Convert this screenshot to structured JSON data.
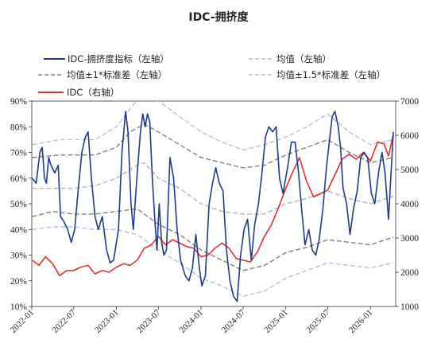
{
  "chart_data": {
    "type": "line",
    "title": "IDC-拥挤度",
    "x_ticks": [
      "2022-01",
      "2022-07",
      "2023-01",
      "2023-07",
      "2024-01",
      "2024-07",
      "2025-01",
      "2025-07",
      "2026-01"
    ],
    "y_left": {
      "range": [
        0.1,
        0.9
      ],
      "ticks": [
        "10%",
        "20%",
        "30%",
        "40%",
        "50%",
        "60%",
        "70%",
        "80%",
        "90%"
      ]
    },
    "y_right": {
      "range": [
        1000,
        7000
      ],
      "ticks": [
        "1000",
        "2000",
        "3000",
        "4000",
        "5000",
        "6000",
        "7000"
      ]
    },
    "legend": {
      "crowding": "IDC-拥挤度指标（左轴）",
      "mean": "均值（左轴）",
      "sd1": "均值±1*标准差（左轴）",
      "sd15": "均值±1.5*标准差（左轴）",
      "idc": "IDC（右轴）"
    },
    "colors": {
      "crowding": "#1f3a8a",
      "mean": "#b5b5b5",
      "sd1": "#808080",
      "sd15": "#a8c4e6",
      "idc": "#e03030"
    },
    "series": {
      "crowding": [
        [
          "2022-01-03",
          0.6
        ],
        [
          "2022-01-20",
          0.58
        ],
        [
          "2022-02-05",
          0.7
        ],
        [
          "2022-02-15",
          0.72
        ],
        [
          "2022-02-25",
          0.6
        ],
        [
          "2022-03-05",
          0.58
        ],
        [
          "2022-03-15",
          0.68
        ],
        [
          "2022-03-25",
          0.65
        ],
        [
          "2022-04-10",
          0.62
        ],
        [
          "2022-04-25",
          0.65
        ],
        [
          "2022-05-05",
          0.45
        ],
        [
          "2022-05-20",
          0.43
        ],
        [
          "2022-06-05",
          0.4
        ],
        [
          "2022-06-20",
          0.35
        ],
        [
          "2022-07-05",
          0.4
        ],
        [
          "2022-07-20",
          0.55
        ],
        [
          "2022-08-05",
          0.7
        ],
        [
          "2022-08-20",
          0.76
        ],
        [
          "2022-09-01",
          0.78
        ],
        [
          "2022-09-15",
          0.6
        ],
        [
          "2022-10-01",
          0.45
        ],
        [
          "2022-10-15",
          0.4
        ],
        [
          "2022-11-01",
          0.45
        ],
        [
          "2022-11-20",
          0.32
        ],
        [
          "2022-12-05",
          0.27
        ],
        [
          "2022-12-20",
          0.28
        ],
        [
          "2023-01-10",
          0.4
        ],
        [
          "2023-01-25",
          0.7
        ],
        [
          "2023-02-10",
          0.86
        ],
        [
          "2023-02-20",
          0.78
        ],
        [
          "2023-03-05",
          0.5
        ],
        [
          "2023-03-15",
          0.4
        ],
        [
          "2023-04-01",
          0.62
        ],
        [
          "2023-04-15",
          0.78
        ],
        [
          "2023-04-25",
          0.85
        ],
        [
          "2023-05-05",
          0.8
        ],
        [
          "2023-05-15",
          0.85
        ],
        [
          "2023-05-25",
          0.82
        ],
        [
          "2023-06-05",
          0.6
        ],
        [
          "2023-06-15",
          0.45
        ],
        [
          "2023-06-25",
          0.32
        ],
        [
          "2023-07-05",
          0.5
        ],
        [
          "2023-07-15",
          0.35
        ],
        [
          "2023-07-25",
          0.3
        ],
        [
          "2023-08-05",
          0.32
        ],
        [
          "2023-08-20",
          0.68
        ],
        [
          "2023-09-05",
          0.6
        ],
        [
          "2023-09-20",
          0.4
        ],
        [
          "2023-10-05",
          0.28
        ],
        [
          "2023-10-25",
          0.22
        ],
        [
          "2023-11-10",
          0.2
        ],
        [
          "2023-11-25",
          0.25
        ],
        [
          "2023-12-10",
          0.38
        ],
        [
          "2023-12-25",
          0.25
        ],
        [
          "2024-01-05",
          0.18
        ],
        [
          "2024-01-20",
          0.22
        ],
        [
          "2024-02-05",
          0.5
        ],
        [
          "2024-02-20",
          0.58
        ],
        [
          "2024-03-05",
          0.64
        ],
        [
          "2024-03-20",
          0.58
        ],
        [
          "2024-04-05",
          0.55
        ],
        [
          "2024-04-20",
          0.32
        ],
        [
          "2024-05-05",
          0.2
        ],
        [
          "2024-05-20",
          0.14
        ],
        [
          "2024-06-05",
          0.12
        ],
        [
          "2024-06-20",
          0.3
        ],
        [
          "2024-07-05",
          0.4
        ],
        [
          "2024-07-20",
          0.44
        ],
        [
          "2024-08-05",
          0.28
        ],
        [
          "2024-08-20",
          0.42
        ],
        [
          "2024-09-05",
          0.5
        ],
        [
          "2024-09-20",
          0.62
        ],
        [
          "2024-10-05",
          0.76
        ],
        [
          "2024-10-20",
          0.8
        ],
        [
          "2024-11-05",
          0.78
        ],
        [
          "2024-11-20",
          0.8
        ],
        [
          "2024-12-05",
          0.6
        ],
        [
          "2024-12-20",
          0.54
        ],
        [
          "2025-01-10",
          0.65
        ],
        [
          "2025-01-25",
          0.74
        ],
        [
          "2025-02-10",
          0.74
        ],
        [
          "2025-02-25",
          0.62
        ],
        [
          "2025-03-10",
          0.48
        ],
        [
          "2025-03-25",
          0.34
        ],
        [
          "2025-04-10",
          0.4
        ],
        [
          "2025-04-25",
          0.32
        ],
        [
          "2025-05-10",
          0.3
        ],
        [
          "2025-05-25",
          0.36
        ],
        [
          "2025-06-10",
          0.48
        ],
        [
          "2025-06-25",
          0.64
        ],
        [
          "2025-07-05",
          0.72
        ],
        [
          "2025-07-20",
          0.84
        ],
        [
          "2025-08-01",
          0.86
        ],
        [
          "2025-08-15",
          0.8
        ],
        [
          "2025-08-25",
          0.72
        ],
        [
          "2025-09-05",
          0.56
        ],
        [
          "2025-09-20",
          0.5
        ],
        [
          "2025-10-05",
          0.38
        ],
        [
          "2025-10-20",
          0.48
        ],
        [
          "2025-11-05",
          0.55
        ],
        [
          "2025-11-20",
          0.68
        ],
        [
          "2025-12-05",
          0.7
        ],
        [
          "2025-12-20",
          0.68
        ],
        [
          "2026-01-05",
          0.54
        ],
        [
          "2026-01-20",
          0.5
        ],
        [
          "2026-02-05",
          0.62
        ],
        [
          "2026-02-20",
          0.7
        ],
        [
          "2026-03-05",
          0.62
        ],
        [
          "2026-03-20",
          0.44
        ],
        [
          "2026-04-01",
          0.64
        ],
        [
          "2026-04-10",
          0.78
        ]
      ],
      "mean": [
        [
          "2022-01-03",
          0.56
        ],
        [
          "2022-07-01",
          0.56
        ],
        [
          "2022-10-01",
          0.57
        ],
        [
          "2023-01-01",
          0.6
        ],
        [
          "2023-04-01",
          0.65
        ],
        [
          "2023-05-01",
          0.66
        ],
        [
          "2023-07-01",
          0.6
        ],
        [
          "2023-10-01",
          0.56
        ],
        [
          "2024-01-01",
          0.5
        ],
        [
          "2024-04-01",
          0.47
        ],
        [
          "2024-07-01",
          0.46
        ],
        [
          "2024-10-01",
          0.46
        ],
        [
          "2025-01-01",
          0.5
        ],
        [
          "2025-04-01",
          0.52
        ],
        [
          "2025-07-01",
          0.55
        ],
        [
          "2025-10-01",
          0.52
        ],
        [
          "2026-01-01",
          0.5
        ],
        [
          "2026-04-10",
          0.53
        ]
      ],
      "sd1_upper": [
        [
          "2022-01-03",
          0.68
        ],
        [
          "2022-05-01",
          0.69
        ],
        [
          "2022-10-01",
          0.69
        ],
        [
          "2023-01-01",
          0.72
        ],
        [
          "2023-03-01",
          0.78
        ],
        [
          "2023-05-01",
          0.81
        ],
        [
          "2023-07-01",
          0.78
        ],
        [
          "2023-10-01",
          0.73
        ],
        [
          "2024-01-01",
          0.68
        ],
        [
          "2024-04-01",
          0.66
        ],
        [
          "2024-07-01",
          0.64
        ],
        [
          "2024-10-01",
          0.65
        ],
        [
          "2025-01-01",
          0.69
        ],
        [
          "2025-04-01",
          0.72
        ],
        [
          "2025-07-01",
          0.75
        ],
        [
          "2025-10-01",
          0.7
        ],
        [
          "2026-01-01",
          0.66
        ],
        [
          "2026-04-10",
          0.68
        ]
      ],
      "sd1_lower": [
        [
          "2022-01-03",
          0.45
        ],
        [
          "2022-04-01",
          0.47
        ],
        [
          "2022-07-01",
          0.46
        ],
        [
          "2022-10-01",
          0.46
        ],
        [
          "2023-01-01",
          0.47
        ],
        [
          "2023-04-01",
          0.48
        ],
        [
          "2023-07-01",
          0.42
        ],
        [
          "2023-10-01",
          0.38
        ],
        [
          "2024-01-01",
          0.32
        ],
        [
          "2024-04-01",
          0.28
        ],
        [
          "2024-07-01",
          0.24
        ],
        [
          "2024-10-01",
          0.26
        ],
        [
          "2025-01-01",
          0.31
        ],
        [
          "2025-04-01",
          0.33
        ],
        [
          "2025-07-01",
          0.36
        ],
        [
          "2025-10-01",
          0.35
        ],
        [
          "2026-01-01",
          0.34
        ],
        [
          "2026-04-10",
          0.37
        ]
      ],
      "sd15_upper": [
        [
          "2022-01-03",
          0.73
        ],
        [
          "2022-05-01",
          0.75
        ],
        [
          "2022-10-01",
          0.75
        ],
        [
          "2023-01-01",
          0.8
        ],
        [
          "2023-03-01",
          0.87
        ],
        [
          "2023-04-15",
          0.92
        ],
        [
          "2023-07-01",
          0.9
        ],
        [
          "2023-10-01",
          0.84
        ],
        [
          "2024-01-01",
          0.78
        ],
        [
          "2024-04-01",
          0.74
        ],
        [
          "2024-07-01",
          0.71
        ],
        [
          "2024-10-01",
          0.73
        ],
        [
          "2025-01-01",
          0.76
        ],
        [
          "2025-04-01",
          0.8
        ],
        [
          "2025-07-01",
          0.85
        ],
        [
          "2025-10-01",
          0.78
        ],
        [
          "2026-01-01",
          0.73
        ],
        [
          "2026-04-10",
          0.75
        ]
      ],
      "sd15_lower": [
        [
          "2022-01-03",
          0.4
        ],
        [
          "2022-04-01",
          0.41
        ],
        [
          "2022-07-01",
          0.41
        ],
        [
          "2022-10-01",
          0.4
        ],
        [
          "2023-01-01",
          0.4
        ],
        [
          "2023-04-01",
          0.38
        ],
        [
          "2023-07-01",
          0.32
        ],
        [
          "2023-10-01",
          0.27
        ],
        [
          "2024-01-01",
          0.21
        ],
        [
          "2024-04-01",
          0.18
        ],
        [
          "2024-07-01",
          0.14
        ],
        [
          "2024-10-01",
          0.16
        ],
        [
          "2025-01-01",
          0.21
        ],
        [
          "2025-04-01",
          0.24
        ],
        [
          "2025-07-01",
          0.27
        ],
        [
          "2025-10-01",
          0.26
        ],
        [
          "2026-01-01",
          0.25
        ],
        [
          "2026-04-10",
          0.27
        ]
      ],
      "idc": [
        [
          "2022-01-03",
          2350
        ],
        [
          "2022-02-01",
          2200
        ],
        [
          "2022-03-01",
          2450
        ],
        [
          "2022-04-01",
          2250
        ],
        [
          "2022-05-01",
          1900
        ],
        [
          "2022-06-01",
          2050
        ],
        [
          "2022-07-01",
          2050
        ],
        [
          "2022-08-01",
          2150
        ],
        [
          "2022-09-01",
          2200
        ],
        [
          "2022-10-01",
          1950
        ],
        [
          "2022-11-01",
          2050
        ],
        [
          "2022-12-01",
          2000
        ],
        [
          "2023-01-01",
          2150
        ],
        [
          "2023-02-01",
          2250
        ],
        [
          "2023-03-01",
          2200
        ],
        [
          "2023-04-01",
          2350
        ],
        [
          "2023-05-01",
          2700
        ],
        [
          "2023-06-01",
          2800
        ],
        [
          "2023-07-01",
          3050
        ],
        [
          "2023-08-01",
          2800
        ],
        [
          "2023-09-01",
          2950
        ],
        [
          "2023-10-01",
          2850
        ],
        [
          "2023-11-01",
          2750
        ],
        [
          "2023-12-01",
          2700
        ],
        [
          "2024-01-01",
          2450
        ],
        [
          "2024-02-01",
          2500
        ],
        [
          "2024-03-01",
          2700
        ],
        [
          "2024-04-01",
          2850
        ],
        [
          "2024-05-01",
          2700
        ],
        [
          "2024-06-01",
          2400
        ],
        [
          "2024-07-01",
          2350
        ],
        [
          "2024-08-01",
          2300
        ],
        [
          "2024-09-01",
          2600
        ],
        [
          "2024-10-01",
          3050
        ],
        [
          "2024-11-01",
          3400
        ],
        [
          "2024-12-01",
          3900
        ],
        [
          "2025-01-01",
          4450
        ],
        [
          "2025-02-01",
          4950
        ],
        [
          "2025-03-01",
          5350
        ],
        [
          "2025-04-01",
          4650
        ],
        [
          "2025-05-01",
          4200
        ],
        [
          "2025-06-01",
          4300
        ],
        [
          "2025-07-01",
          4400
        ],
        [
          "2025-08-01",
          4850
        ],
        [
          "2025-09-01",
          5300
        ],
        [
          "2025-10-01",
          5450
        ],
        [
          "2025-11-01",
          5300
        ],
        [
          "2025-12-01",
          5500
        ],
        [
          "2026-01-01",
          5250
        ],
        [
          "2026-02-01",
          5800
        ],
        [
          "2026-03-01",
          5750
        ],
        [
          "2026-03-20",
          5400
        ],
        [
          "2026-04-10",
          6050
        ]
      ]
    }
  }
}
